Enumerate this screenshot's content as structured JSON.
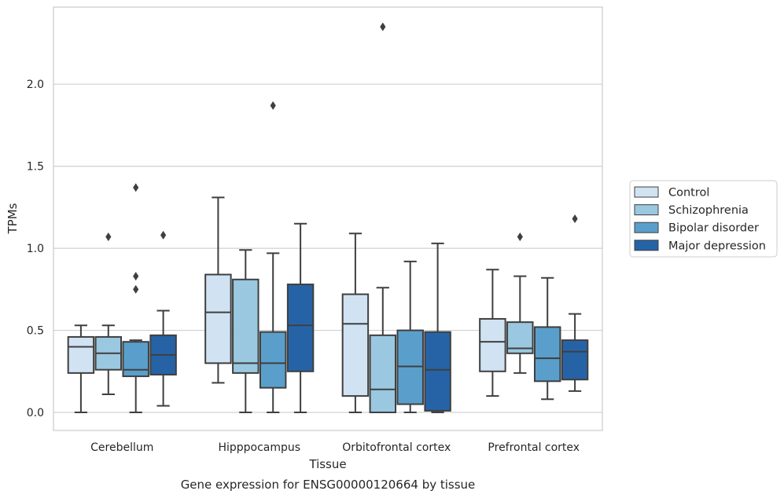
{
  "chart_data": {
    "type": "box",
    "title": "",
    "caption": "Gene expression for ENSG00000120664 by tissue",
    "xlabel": "Tissue",
    "ylabel": "TPMs",
    "ylim": [
      -0.11,
      2.47
    ],
    "yticks": [
      0.0,
      0.5,
      1.0,
      1.5,
      2.0
    ],
    "ytick_labels": [
      "0.0",
      "0.5",
      "1.0",
      "1.5",
      "2.0"
    ],
    "grid": "horizontal",
    "legend_position": "right",
    "categories": [
      "Cerebellum",
      "Hipppocampus",
      "Orbitofrontal cortex",
      "Prefrontal cortex"
    ],
    "series": [
      {
        "name": "Control",
        "color": "#d1e2f2",
        "boxes": [
          {
            "whislo": 0.0,
            "q1": 0.24,
            "med": 0.4,
            "q3": 0.46,
            "whishi": 0.53,
            "fliers": []
          },
          {
            "whislo": 0.18,
            "q1": 0.3,
            "med": 0.61,
            "q3": 0.84,
            "whishi": 1.31,
            "fliers": []
          },
          {
            "whislo": 0.0,
            "q1": 0.1,
            "med": 0.54,
            "q3": 0.72,
            "whishi": 1.09,
            "fliers": []
          },
          {
            "whislo": 0.1,
            "q1": 0.25,
            "med": 0.43,
            "q3": 0.57,
            "whishi": 0.87,
            "fliers": []
          }
        ]
      },
      {
        "name": "Schizophrenia",
        "color": "#9ac8e0",
        "boxes": [
          {
            "whislo": 0.11,
            "q1": 0.26,
            "med": 0.36,
            "q3": 0.46,
            "whishi": 0.53,
            "fliers": [
              1.07
            ]
          },
          {
            "whislo": 0.0,
            "q1": 0.24,
            "med": 0.3,
            "q3": 0.81,
            "whishi": 0.99,
            "fliers": []
          },
          {
            "whislo": 0.0,
            "q1": 0.0,
            "med": 0.14,
            "q3": 0.47,
            "whishi": 0.76,
            "fliers": [
              2.35
            ]
          },
          {
            "whislo": 0.24,
            "q1": 0.36,
            "med": 0.39,
            "q3": 0.55,
            "whishi": 0.83,
            "fliers": [
              1.07
            ]
          }
        ]
      },
      {
        "name": "Bipolar disorder",
        "color": "#5a9fcb",
        "boxes": [
          {
            "whislo": 0.0,
            "q1": 0.22,
            "med": 0.26,
            "q3": 0.43,
            "whishi": 0.44,
            "fliers": [
              0.75,
              0.83,
              1.37
            ]
          },
          {
            "whislo": 0.0,
            "q1": 0.15,
            "med": 0.3,
            "q3": 0.49,
            "whishi": 0.97,
            "fliers": [
              1.87
            ]
          },
          {
            "whislo": 0.0,
            "q1": 0.05,
            "med": 0.28,
            "q3": 0.5,
            "whishi": 0.92,
            "fliers": []
          },
          {
            "whislo": 0.08,
            "q1": 0.19,
            "med": 0.33,
            "q3": 0.52,
            "whishi": 0.82,
            "fliers": []
          }
        ]
      },
      {
        "name": "Major depression",
        "color": "#2663a6",
        "boxes": [
          {
            "whislo": 0.04,
            "q1": 0.23,
            "med": 0.35,
            "q3": 0.47,
            "whishi": 0.62,
            "fliers": [
              1.08
            ]
          },
          {
            "whislo": 0.0,
            "q1": 0.25,
            "med": 0.53,
            "q3": 0.78,
            "whishi": 1.15,
            "fliers": []
          },
          {
            "whislo": 0.0,
            "q1": 0.01,
            "med": 0.26,
            "q3": 0.49,
            "whishi": 1.03,
            "fliers": []
          },
          {
            "whislo": 0.13,
            "q1": 0.2,
            "med": 0.37,
            "q3": 0.44,
            "whishi": 0.6,
            "fliers": [
              1.18
            ]
          }
        ]
      }
    ]
  }
}
